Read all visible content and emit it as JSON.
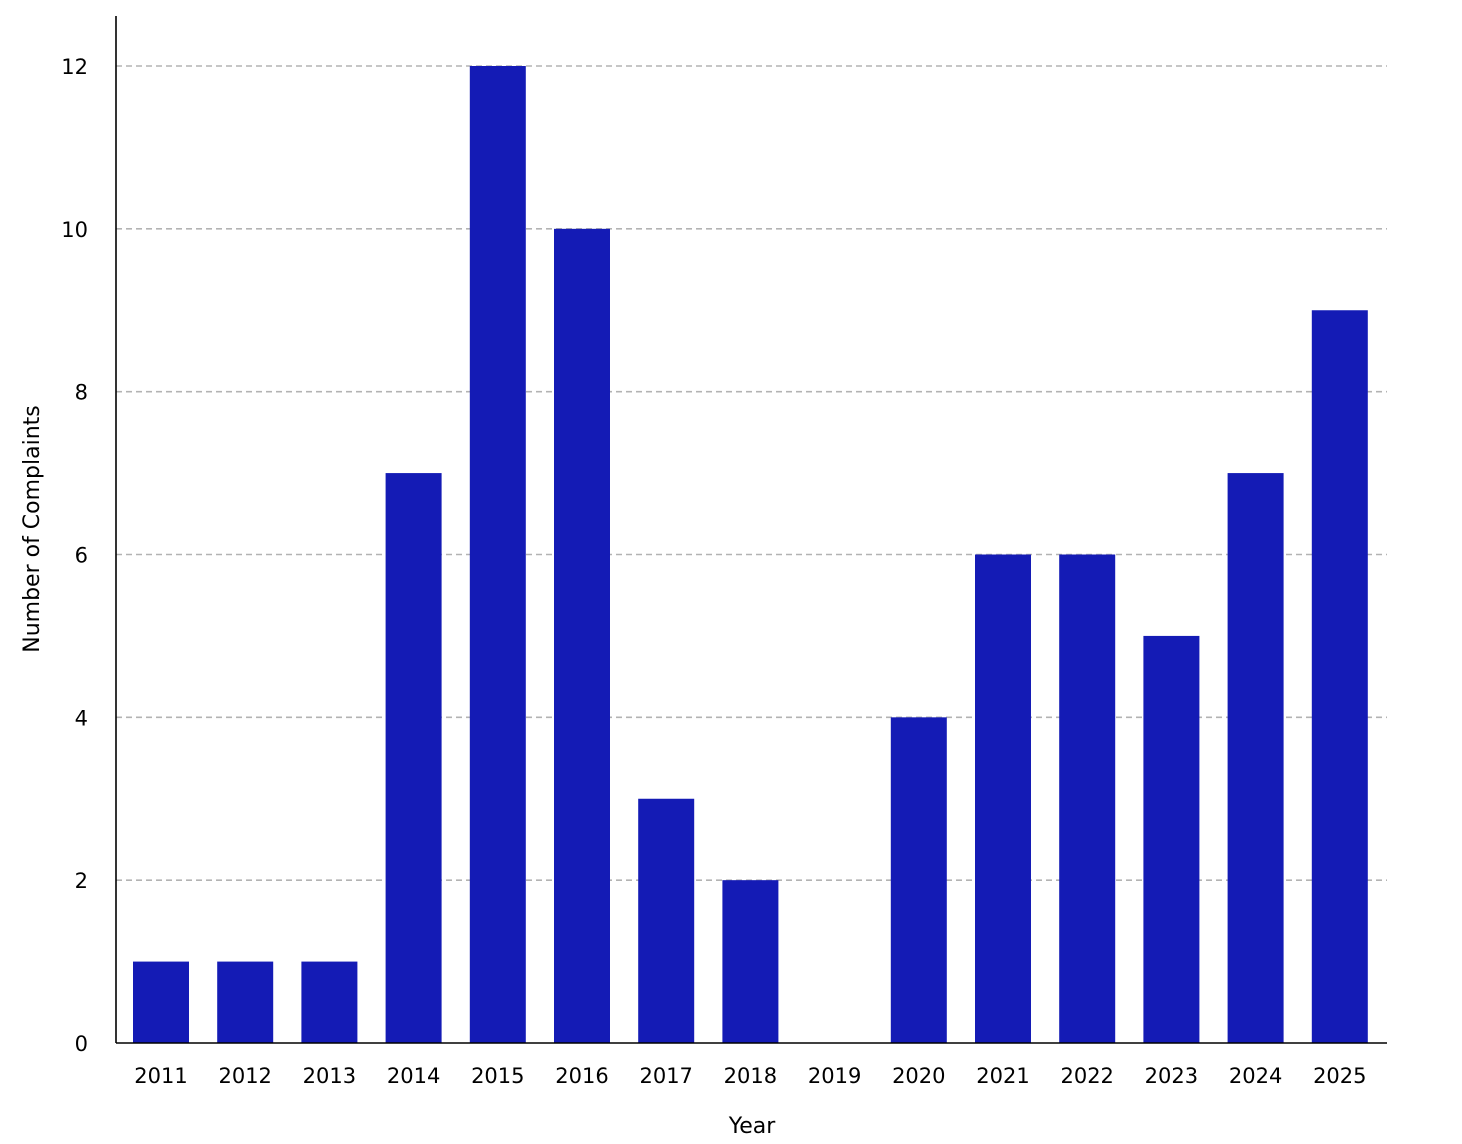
{
  "chart_data": {
    "type": "bar",
    "title": "",
    "xlabel": "Year",
    "ylabel": "Number of Complaints",
    "categories": [
      "2011",
      "2012",
      "2013",
      "2014",
      "2015",
      "2016",
      "2017",
      "2018",
      "2019",
      "2020",
      "2021",
      "2022",
      "2023",
      "2024",
      "2025"
    ],
    "values": [
      1,
      1,
      1,
      7,
      12,
      10,
      3,
      2,
      0,
      4,
      6,
      6,
      5,
      7,
      9
    ],
    "ylim": [
      0,
      12
    ],
    "yticks": [
      "0",
      "2",
      "4",
      "6",
      "8",
      "10",
      "12"
    ],
    "grid": "horizontal dashed",
    "bar_color": "#141bb5"
  }
}
